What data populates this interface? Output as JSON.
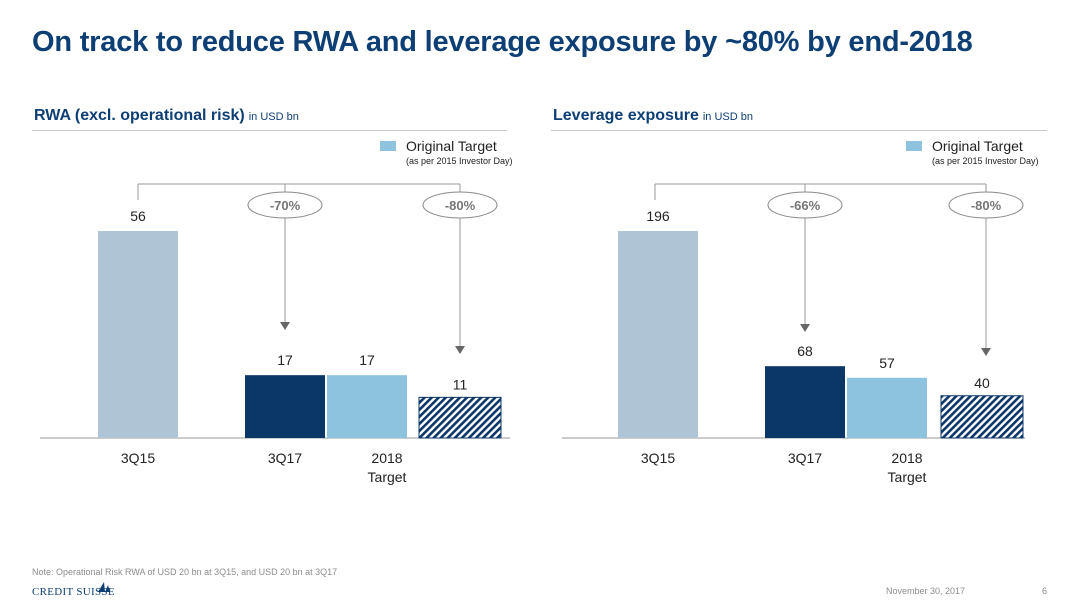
{
  "slide": {
    "title": "On track to reduce RWA and leverage exposure by ~80% by end-2018",
    "note": "Note: Operational Risk RWA of USD 20 bn at 3Q15, and USD 20 bn at 3Q17",
    "footer_logo": "CREDIT SUISSE",
    "date": "November 30, 2017",
    "page_number": "6"
  },
  "legend": {
    "label": "Original Target",
    "sublabel": "(as per 2015 Investor Day)"
  },
  "colors": {
    "title": "#0e3f74",
    "bar_3q15": "#afc4d5",
    "bar_3q17": "#0b3668",
    "bar_target_original": "#8ec3e0",
    "bar_target_new_hatch": "#0b3668",
    "axis": "#999999",
    "connector": "#999999"
  },
  "chart_data": [
    {
      "type": "bar",
      "title": "RWA (excl. operational risk)",
      "unit": "in USD bn",
      "categories": [
        "3Q15",
        "3Q17",
        "2018\nTarget"
      ],
      "values": [
        56,
        17,
        11
      ],
      "original_target": 17,
      "reductions": [
        "-70%",
        "-80%"
      ],
      "bar_styles": [
        "light-grey-blue",
        "dark-navy",
        "hatched-navy over light-blue original target"
      ],
      "ylim": [
        0,
        56
      ]
    },
    {
      "type": "bar",
      "title": "Leverage exposure",
      "unit": "in USD bn",
      "categories": [
        "3Q15",
        "3Q17",
        "2018\nTarget"
      ],
      "values": [
        196,
        68,
        40
      ],
      "original_target": 57,
      "reductions": [
        "-66%",
        "-80%"
      ],
      "bar_styles": [
        "light-grey-blue",
        "dark-navy",
        "hatched-navy over light-blue original target"
      ],
      "ylim": [
        0,
        196
      ]
    }
  ]
}
